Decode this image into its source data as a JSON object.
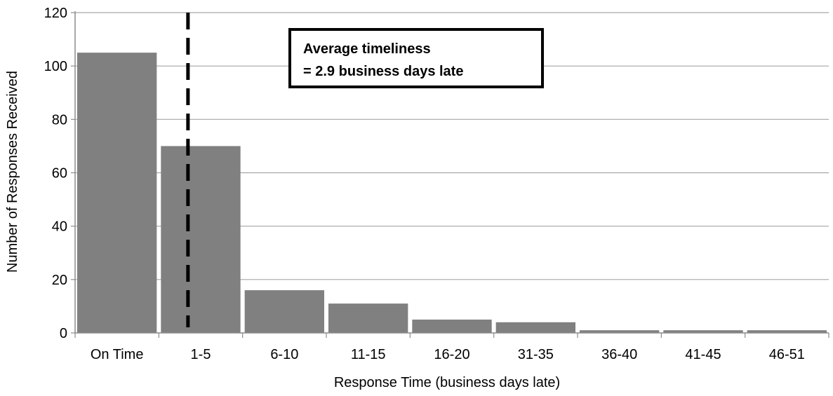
{
  "chart_data": {
    "type": "bar",
    "title": "",
    "xlabel": "Response Time (business days late)",
    "ylabel": "Number of Responses Received",
    "categories": [
      "On Time",
      "1-5",
      "6-10",
      "11-15",
      "16-20",
      "31-35",
      "36-40",
      "41-45",
      "46-51"
    ],
    "values": [
      105,
      70,
      16,
      11,
      5,
      4,
      1,
      1,
      1
    ],
    "ylim": [
      0,
      120
    ],
    "yticks": [
      0,
      20,
      40,
      60,
      80,
      100,
      120
    ],
    "grid": "horizontal",
    "legend": "none",
    "average_line": {
      "x": 2.9,
      "style": "dashed",
      "color": "#000000"
    },
    "annotation": {
      "line1": "Average timeliness",
      "line2": "= 2.9 business days late"
    },
    "colors": {
      "bar": "#808080",
      "grid": "#a6a6a6",
      "axis": "#8c8c8c"
    }
  }
}
